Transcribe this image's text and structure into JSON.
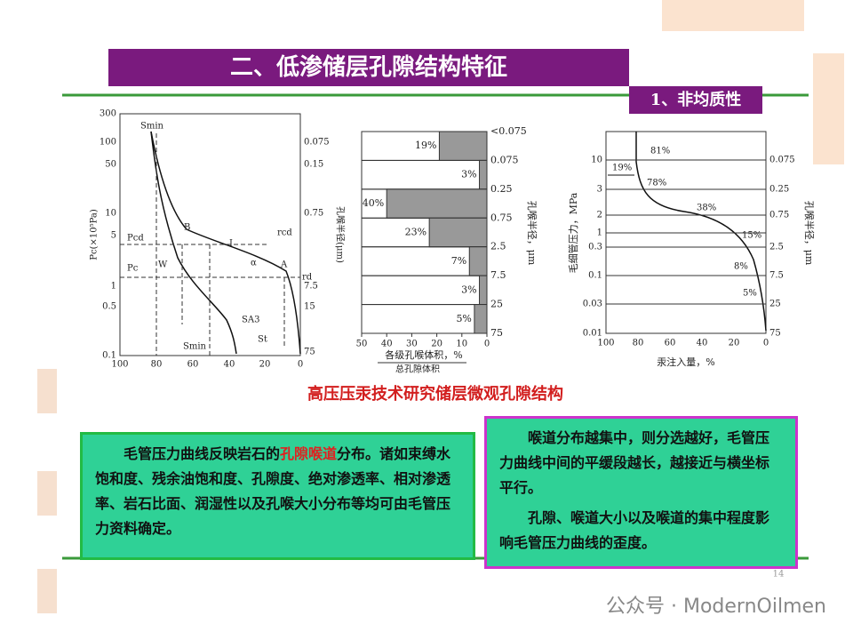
{
  "header": {
    "title": "二、低渗储层孔隙结构特征",
    "subtitle": "1、非均质性"
  },
  "figure_left": {
    "ylabel": "Pc(×10⁵Pa)",
    "ylabel_right": "孔喉半径(μm)",
    "yticks": [
      300,
      100,
      50,
      10,
      5,
      1,
      0.5,
      0.1
    ],
    "xticks": [
      100,
      80,
      60,
      40,
      20,
      0
    ],
    "yticks_right": [
      0.075,
      0.15,
      0.75,
      7.5,
      15,
      75
    ],
    "annotations": [
      "Smin",
      "B",
      "I",
      "W",
      "A",
      "α",
      "Pcd",
      "Pc",
      "rcd",
      "rd",
      "SA3",
      "Smin",
      "St"
    ]
  },
  "figure_middle": {
    "type": "bar",
    "values": [
      19,
      3,
      40,
      23,
      7,
      3,
      5
    ],
    "value_labels": [
      "19%",
      "3%",
      "40%",
      "23%",
      "7%",
      "3%",
      "5%"
    ],
    "xlim": [
      50,
      0
    ],
    "xticks": [
      50,
      40,
      30,
      20,
      10,
      0
    ],
    "boundary_labels": [
      "<0.075",
      0.075,
      0.25,
      0.75,
      2.5,
      7.5,
      25,
      75
    ],
    "xlabel": "各级孔喉体积",
    "xlabel_unit": "，%",
    "xlabel_denominator": "总孔隙体积",
    "ylabel": "孔喉半径，μm"
  },
  "figure_right": {
    "ylabel": "毛细管压力，MPa",
    "ylabel_right": "孔喉半径，μm",
    "xlabel": "汞注入量，%",
    "yticks": [
      10,
      3,
      2,
      1,
      0.3,
      0.1,
      0.03,
      0.01
    ],
    "yticks_right": [
      0.075,
      0.25,
      0.75,
      2.5,
      7.5,
      25,
      75
    ],
    "xticks": [
      100,
      80,
      60,
      40,
      20,
      0
    ],
    "annotations": [
      "81%",
      "19%",
      "78%",
      "38%",
      "15%",
      "8%",
      "5%"
    ]
  },
  "caption": "高压压汞技术研究储层微观孔隙结构",
  "box_left": {
    "text_before": "毛管压力曲线反映岩石的",
    "highlight": "孔隙喉道",
    "text_after": "分布。诸如束缚水饱和度、残余油饱和度、孔隙度、绝对渗透率、相对渗透率、岩石比面、润湿性以及孔喉大小分布等均可由毛管压力资料确定。"
  },
  "box_right": {
    "paragraphs": [
      "喉道分布越集中，则分选越好，毛管压力曲线中间的平缓段越长，越接近与横坐标平行。",
      "孔隙、喉道大小以及喉道的集中程度影响毛管压力曲线的歪度。"
    ]
  },
  "page_number": 14,
  "watermark": "公众号 · ModernOilmen"
}
